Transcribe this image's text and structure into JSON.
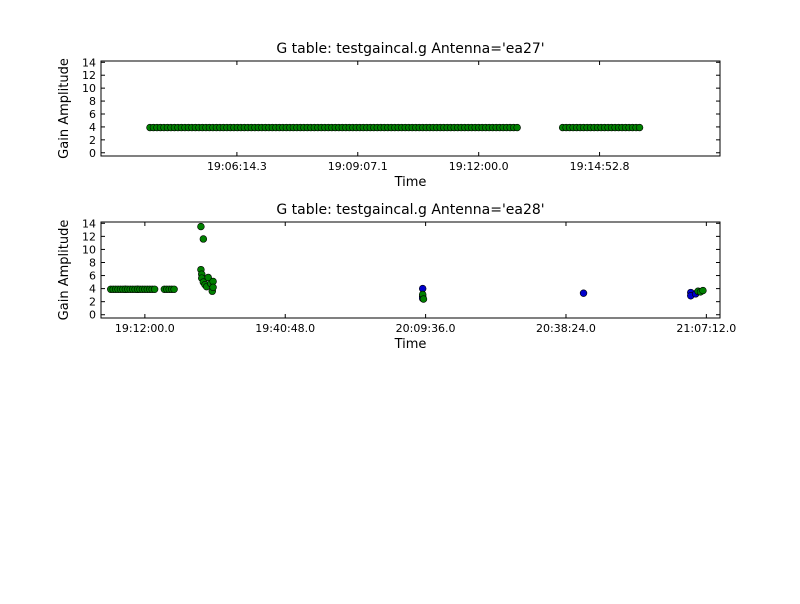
{
  "chart_data": [
    {
      "type": "scatter",
      "title": "G table: testgaincal.g      Antenna='ea27'",
      "xlabel": "Time",
      "ylabel": "Gain Amplitude",
      "ylim": [
        -0.5,
        14.2
      ],
      "yticks": [
        "0",
        "2",
        "4",
        "6",
        "8",
        "10",
        "12",
        "14"
      ],
      "xlim": [
        "19:03:00.0",
        "19:17:45.0"
      ],
      "xticks": [
        "19:06:14.3",
        "19:09:07.1",
        "19:12:00.0",
        "19:14:52.8"
      ],
      "grid": false,
      "series": [
        {
          "color": "#008000",
          "points": [
            {
              "t0": "19:04:10",
              "t1": "19:12:55",
              "step_s": 5,
              "y": 3.9
            },
            {
              "t0": "19:14:00",
              "t1": "19:15:50",
              "step_s": 5,
              "y": 3.9
            }
          ]
        }
      ]
    },
    {
      "type": "scatter",
      "title": "G table: testgaincal.g      Antenna='ea28'",
      "xlabel": "Time",
      "ylabel": "Gain Amplitude",
      "ylim": [
        -0.5,
        14.2
      ],
      "yticks": [
        "0",
        "2",
        "4",
        "6",
        "8",
        "10",
        "12",
        "14"
      ],
      "xlim": [
        "19:03:00.0",
        "21:10:00.0"
      ],
      "xticks": [
        "19:12:00.0",
        "19:40:48.0",
        "20:09:36.0",
        "20:38:24.0",
        "21:07:12.0"
      ],
      "grid": false,
      "series": [
        {
          "color": "#0000cc",
          "points": [
            {
              "t": "19:08:00",
              "y": 3.9
            },
            {
              "t": "19:10:30",
              "y": 3.9
            },
            {
              "t": "20:09:00",
              "y": 4.0
            },
            {
              "t": "20:09:00",
              "y": 2.8
            },
            {
              "t": "20:09:00",
              "y": 2.5
            },
            {
              "t": "20:42:00",
              "y": 3.3
            },
            {
              "t": "21:04:00",
              "y": 3.4
            },
            {
              "t": "21:04:00",
              "y": 2.9
            },
            {
              "t": "21:05:00",
              "y": 3.2
            }
          ]
        },
        {
          "color": "#008000",
          "points": [
            {
              "t0": "19:05:00",
              "t1": "19:14:00",
              "step_s": 30,
              "y": 3.9
            },
            {
              "t0": "19:16:00",
              "t1": "19:18:00",
              "step_s": 30,
              "y": 3.9
            },
            {
              "t": "19:23:30",
              "y": 13.5
            },
            {
              "t": "19:24:00",
              "y": 11.6
            },
            {
              "t": "19:23:30",
              "y": 6.9
            },
            {
              "t": "19:23:40",
              "y": 6.2
            },
            {
              "t": "19:23:40",
              "y": 5.6
            },
            {
              "t": "19:24:00",
              "y": 5.0
            },
            {
              "t": "19:24:20",
              "y": 4.6
            },
            {
              "t": "19:24:40",
              "y": 4.3
            },
            {
              "t": "19:25:00",
              "y": 5.7
            },
            {
              "t": "19:25:30",
              "y": 4.8
            },
            {
              "t": "19:25:50",
              "y": 3.6
            },
            {
              "t": "19:26:00",
              "y": 5.1
            },
            {
              "t": "19:26:00",
              "y": 4.2
            },
            {
              "t": "20:09:00",
              "y": 3.1
            },
            {
              "t": "20:09:10",
              "y": 2.4
            },
            {
              "t": "21:05:30",
              "y": 3.6
            },
            {
              "t": "21:06:00",
              "y": 3.5
            },
            {
              "t": "21:06:30",
              "y": 3.7
            }
          ]
        }
      ]
    }
  ]
}
